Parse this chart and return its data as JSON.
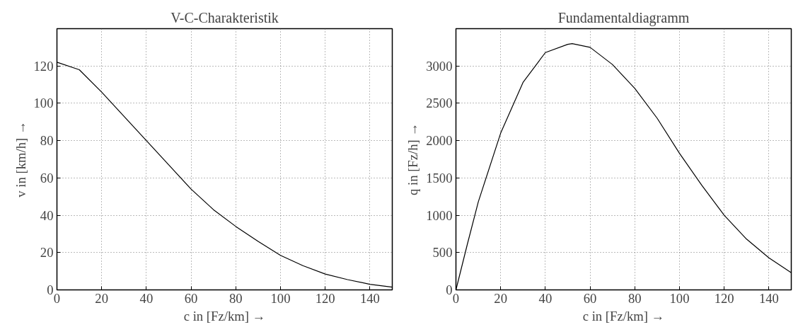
{
  "chart_data": [
    {
      "type": "line",
      "title": "V-C-Charakteristik",
      "xlabel": "c in [Fz/km] →",
      "ylabel": "v in [km/h] →",
      "x": [
        0,
        10,
        20,
        30,
        40,
        50,
        60,
        70,
        80,
        90,
        100,
        110,
        120,
        130,
        140,
        150
      ],
      "series": [
        {
          "color": "#000000",
          "values": [
            122,
            118,
            106,
            93,
            80,
            67,
            54,
            43,
            34,
            26,
            18.5,
            13,
            8.5,
            5.5,
            3,
            1.5
          ]
        }
      ],
      "xlim": [
        0,
        150
      ],
      "ylim": [
        0,
        140
      ],
      "xticks": [
        0,
        20,
        40,
        60,
        80,
        100,
        120,
        140
      ],
      "yticks": [
        0,
        20,
        40,
        60,
        80,
        100,
        120
      ],
      "grid": true,
      "line_style": "solid"
    },
    {
      "type": "line",
      "title": "Fundamentaldiagramm",
      "xlabel": "c in [Fz/km] →",
      "ylabel": "q in [Fz/h] →",
      "x": [
        0,
        5,
        10,
        20,
        30,
        40,
        50,
        52,
        60,
        70,
        80,
        90,
        100,
        110,
        120,
        130,
        140,
        150
      ],
      "series": [
        {
          "color": "#000000",
          "values": [
            0,
            600,
            1180,
            2100,
            2780,
            3180,
            3290,
            3300,
            3250,
            3020,
            2700,
            2300,
            1830,
            1400,
            1000,
            680,
            430,
            230
          ]
        }
      ],
      "xlim": [
        0,
        150
      ],
      "ylim": [
        0,
        3500
      ],
      "xticks": [
        0,
        20,
        40,
        60,
        80,
        100,
        120,
        140
      ],
      "yticks": [
        0,
        500,
        1000,
        1500,
        2000,
        2500,
        3000
      ],
      "grid": true,
      "line_style": "solid"
    }
  ]
}
